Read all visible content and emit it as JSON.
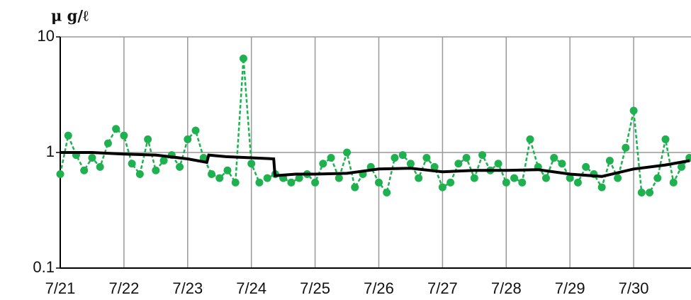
{
  "chart_data": {
    "type": "line",
    "y_label": "μ g/ℓ",
    "log_y": true,
    "grid": true,
    "ylim": [
      0.1,
      10
    ],
    "yticks": [
      0.1,
      1,
      10
    ],
    "xlim": [
      0,
      9.9
    ],
    "xticks": [
      {
        "value": 0,
        "label": "7/21"
      },
      {
        "value": 1,
        "label": "7/22"
      },
      {
        "value": 2,
        "label": "7/23"
      },
      {
        "value": 3,
        "label": "7/24"
      },
      {
        "value": 4,
        "label": "7/25"
      },
      {
        "value": 5,
        "label": "7/26"
      },
      {
        "value": 6,
        "label": "7/27"
      },
      {
        "value": 7,
        "label": "7/28"
      },
      {
        "value": 8,
        "label": "7/29"
      },
      {
        "value": 9,
        "label": "7/30"
      }
    ],
    "series": [
      {
        "color": "#1fb04f",
        "style": "dashed-markers",
        "x": [
          0,
          0.125,
          0.25,
          0.375,
          0.5,
          0.625,
          0.75,
          0.875,
          1,
          1.125,
          1.25,
          1.375,
          1.5,
          1.625,
          1.75,
          1.875,
          2,
          2.125,
          2.25,
          2.375,
          2.5,
          2.625,
          2.75,
          2.875,
          3,
          3.125,
          3.25,
          3.375,
          3.5,
          3.625,
          3.75,
          3.875,
          4,
          4.125,
          4.25,
          4.375,
          4.5,
          4.625,
          4.75,
          4.875,
          5,
          5.125,
          5.25,
          5.375,
          5.5,
          5.625,
          5.75,
          5.875,
          6,
          6.125,
          6.25,
          6.375,
          6.5,
          6.625,
          6.75,
          6.875,
          7,
          7.125,
          7.25,
          7.375,
          7.5,
          7.625,
          7.75,
          7.875,
          8,
          8.125,
          8.25,
          8.375,
          8.5,
          8.625,
          8.75,
          8.875,
          9,
          9.125,
          9.25,
          9.375,
          9.5,
          9.625,
          9.75,
          9.875
        ],
        "values": [
          0.65,
          1.4,
          0.95,
          0.7,
          0.9,
          0.75,
          1.2,
          1.6,
          1.4,
          0.8,
          0.65,
          1.3,
          0.7,
          0.85,
          0.95,
          0.75,
          1.3,
          1.55,
          0.9,
          0.65,
          0.6,
          0.7,
          0.55,
          6.5,
          0.8,
          0.55,
          0.6,
          0.65,
          0.6,
          0.55,
          0.6,
          0.65,
          0.55,
          0.8,
          0.9,
          0.6,
          1.0,
          0.5,
          0.65,
          0.75,
          0.55,
          0.45,
          0.9,
          0.95,
          0.8,
          0.6,
          0.9,
          0.75,
          0.5,
          0.55,
          0.8,
          0.9,
          0.6,
          0.95,
          0.7,
          0.8,
          0.55,
          0.6,
          0.55,
          1.3,
          0.75,
          0.6,
          0.9,
          0.8,
          0.6,
          0.55,
          0.75,
          0.65,
          0.5,
          0.85,
          0.6,
          1.1,
          2.3,
          0.45,
          0.45,
          0.6,
          1.3,
          0.55,
          0.75,
          0.9
        ]
      },
      {
        "color": "#000000",
        "style": "solid",
        "x": [
          0,
          0.5,
          1,
          1.5,
          2,
          2.3,
          2.33,
          2.6,
          3,
          3.35,
          3.37,
          3.7,
          4,
          4.5,
          5,
          5.5,
          6,
          6.5,
          7,
          7.5,
          8,
          8.5,
          9,
          9.5,
          9.88
        ],
        "values": [
          1.0,
          1.0,
          0.97,
          0.95,
          0.88,
          0.82,
          0.95,
          0.92,
          0.9,
          0.88,
          0.63,
          0.65,
          0.65,
          0.66,
          0.72,
          0.73,
          0.68,
          0.7,
          0.7,
          0.71,
          0.65,
          0.62,
          0.72,
          0.78,
          0.85
        ]
      }
    ]
  }
}
